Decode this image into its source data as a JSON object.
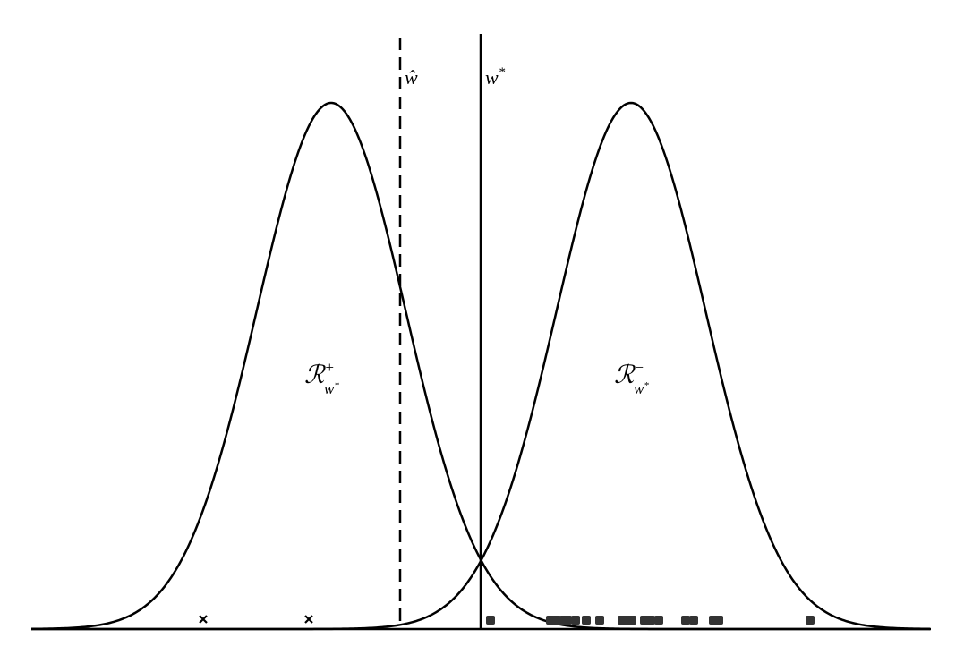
{
  "labels": {
    "w_hat": {
      "base": "ŵ"
    },
    "w_star": {
      "base": "w",
      "sup": "*"
    },
    "region_plus": {
      "base": "ℛ",
      "sup": "+",
      "sub": "w",
      "subsup": "*"
    },
    "region_minus": {
      "base": "ℛ",
      "sup": "−",
      "sub": "w",
      "subsup": "*"
    }
  }
}
